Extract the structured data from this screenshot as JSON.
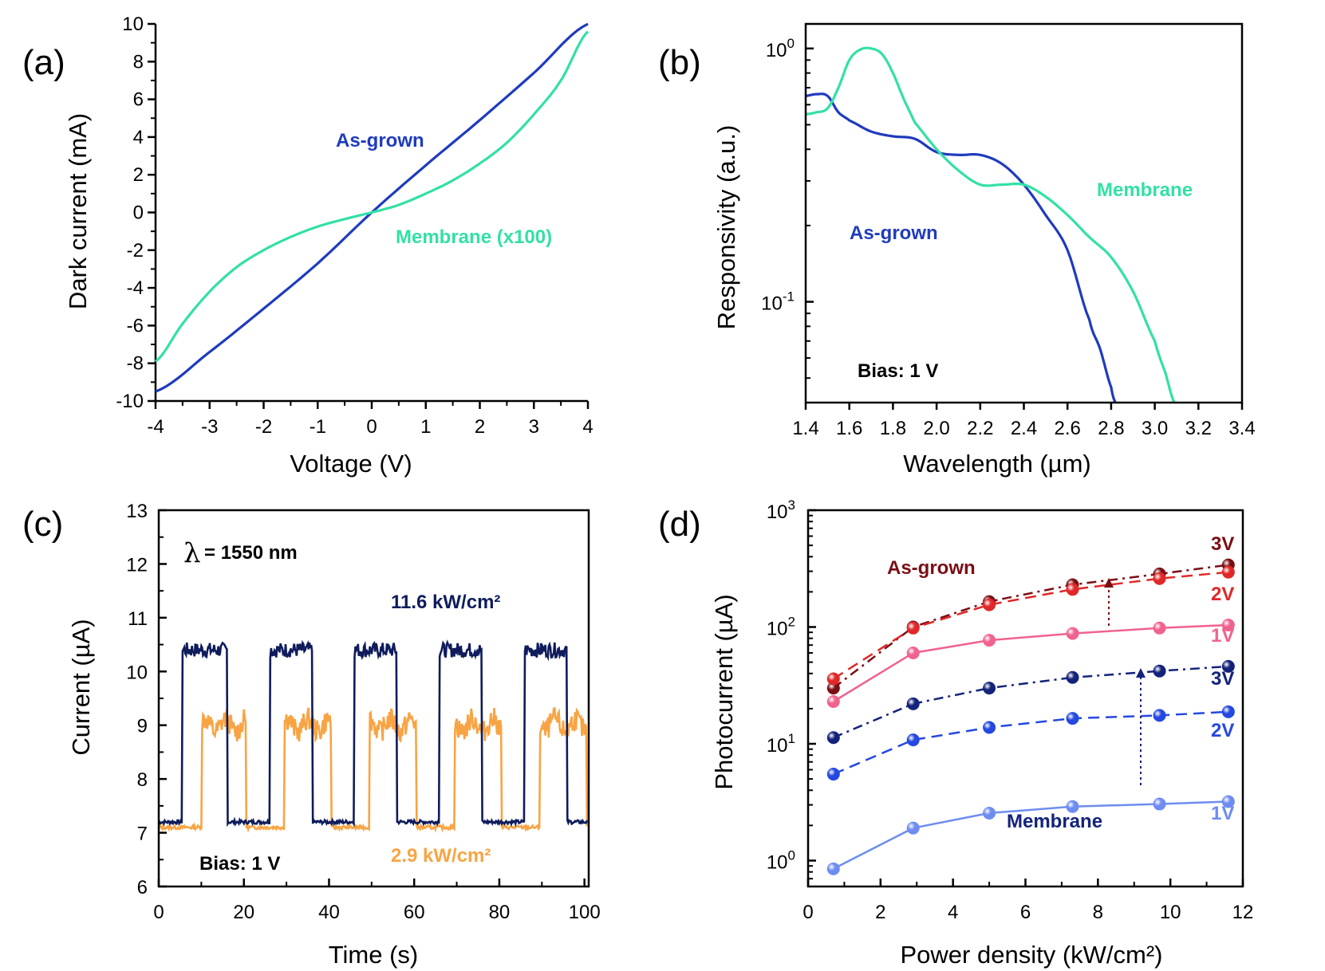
{
  "chart_data": [
    {
      "panel": "(a)",
      "type": "line",
      "xlabel": "Voltage (V)",
      "ylabel": "Dark current (mA)",
      "xlim": [
        -4,
        4
      ],
      "ylim": [
        -10,
        10
      ],
      "xticks": [
        "-4",
        "-3",
        "-2",
        "-1",
        "0",
        "1",
        "2",
        "3",
        "4"
      ],
      "yticks": [
        "-10",
        "-8",
        "-6",
        "-4",
        "-2",
        "0",
        "2",
        "4",
        "6",
        "8",
        "10"
      ],
      "series": [
        {
          "name": "As-grown",
          "color": "#1f3bbd",
          "x": [
            -4,
            -3,
            -2,
            -1,
            0,
            1,
            2,
            3,
            4
          ],
          "y": [
            -9.5,
            -7.4,
            -5.1,
            -2.7,
            0,
            2.5,
            4.9,
            7.4,
            10.0
          ]
        },
        {
          "name": "Membrane (x100)",
          "color": "#33e0a6",
          "x": [
            -4,
            -3.5,
            -3,
            -2.5,
            -2,
            -1.5,
            -1,
            -0.5,
            0,
            0.5,
            1,
            1.5,
            2,
            2.5,
            3,
            3.5,
            4
          ],
          "y": [
            -7.9,
            -5.9,
            -4.2,
            -2.9,
            -2.0,
            -1.3,
            -0.75,
            -0.35,
            0,
            0.4,
            1.0,
            1.7,
            2.6,
            3.7,
            5.2,
            7.0,
            9.6
          ]
        }
      ]
    },
    {
      "panel": "(b)",
      "type": "line",
      "yscale": "log",
      "xlabel": "Wavelength (µm)",
      "ylabel": "Responsivity (a.u.)",
      "xlim": [
        1.4,
        3.4
      ],
      "ylim": [
        0.04,
        1.25
      ],
      "xticks": [
        "1.4",
        "1.6",
        "1.8",
        "2.0",
        "2.2",
        "2.4",
        "2.6",
        "2.8",
        "3.0",
        "3.2",
        "3.4"
      ],
      "ytick_base": "10",
      "ytick_exponents": [
        "0",
        "-1"
      ],
      "annotation": "Bias: 1 V",
      "series": [
        {
          "name": "As-grown",
          "color": "#1f3bbd",
          "x": [
            1.4,
            1.45,
            1.5,
            1.55,
            1.6,
            1.7,
            1.8,
            1.9,
            2.0,
            2.1,
            2.2,
            2.3,
            2.4,
            2.5,
            2.6,
            2.7,
            2.75,
            2.8,
            2.82
          ],
          "y": [
            0.65,
            0.66,
            0.65,
            0.56,
            0.52,
            0.47,
            0.45,
            0.44,
            0.39,
            0.38,
            0.38,
            0.35,
            0.29,
            0.22,
            0.16,
            0.085,
            0.065,
            0.046,
            0.04
          ]
        },
        {
          "name": "Membrane",
          "color": "#33e0a6",
          "x": [
            1.4,
            1.45,
            1.5,
            1.55,
            1.6,
            1.65,
            1.7,
            1.75,
            1.8,
            1.85,
            1.9,
            2.0,
            2.1,
            2.2,
            2.3,
            2.4,
            2.5,
            2.6,
            2.7,
            2.8,
            2.9,
            3.0,
            3.05,
            3.09
          ],
          "y": [
            0.55,
            0.56,
            0.58,
            0.7,
            0.9,
            0.99,
            1.0,
            0.95,
            0.8,
            0.63,
            0.51,
            0.4,
            0.33,
            0.29,
            0.29,
            0.29,
            0.26,
            0.22,
            0.18,
            0.15,
            0.11,
            0.07,
            0.052,
            0.04
          ]
        }
      ]
    },
    {
      "panel": "(c)",
      "type": "line",
      "xlabel": "Time (s)",
      "ylabel": "Current (µA)",
      "xlim": [
        0,
        101
      ],
      "ylim": [
        6,
        13
      ],
      "xticks": [
        "0",
        "20",
        "40",
        "60",
        "80",
        "100"
      ],
      "yticks": [
        "6",
        "7",
        "8",
        "9",
        "10",
        "11",
        "12",
        "13"
      ],
      "wavelength": "1550 nm",
      "annotation": "Bias: 1 V",
      "series": [
        {
          "name": "11.6 kW/cm²",
          "color": "#0f1c5c",
          "off_level": 7.2,
          "on_level": 10.4,
          "on_intervals": [
            [
              5.5,
              16
            ],
            [
              26,
              36
            ],
            [
              46,
              56
            ],
            [
              66,
              76
            ],
            [
              86,
              96
            ]
          ]
        },
        {
          "name": "2.9 kW/cm²",
          "color": "#f8a444",
          "off_level": 7.1,
          "on_level": 9.0,
          "on_intervals": [
            [
              10,
              20.5
            ],
            [
              29.5,
              40.5
            ],
            [
              49.5,
              60.5
            ],
            [
              69.5,
              80.5
            ],
            [
              89.5,
              100.5
            ]
          ]
        }
      ]
    },
    {
      "panel": "(d)",
      "type": "line",
      "yscale": "log",
      "xlabel": "Power density (kW/cm²)",
      "ylabel": "Photocurrent (µA)",
      "xlim": [
        0,
        12
      ],
      "ylim": [
        0.6,
        1000
      ],
      "xticks": [
        "0",
        "2",
        "4",
        "6",
        "8",
        "10",
        "12"
      ],
      "ytick_base": "10",
      "ytick_exponents": [
        "3",
        "2",
        "1",
        "0"
      ],
      "x": [
        0.7,
        2.9,
        5.0,
        7.3,
        9.7,
        11.6
      ],
      "series": [
        {
          "name": "As-grown 3V",
          "group": "As-grown",
          "color": "#7a0e14",
          "dash": "dashdot",
          "values": [
            30,
            100,
            165,
            230,
            285,
            340
          ]
        },
        {
          "name": "As-grown 2V",
          "group": "As-grown",
          "color": "#e02828",
          "dash": "dashed",
          "values": [
            36,
            98,
            155,
            210,
            260,
            295
          ]
        },
        {
          "name": "As-grown 1V",
          "group": "As-grown",
          "color": "#f0628e",
          "dash": "solid",
          "values": [
            23,
            60,
            77,
            88,
            98,
            104
          ]
        },
        {
          "name": "Membrane 3V",
          "group": "Membrane",
          "color": "#14237a",
          "dash": "dashdot",
          "values": [
            11.3,
            22,
            30,
            37,
            42,
            46
          ]
        },
        {
          "name": "Membrane 2V",
          "group": "Membrane",
          "color": "#2448e0",
          "dash": "dashed",
          "values": [
            5.5,
            10.8,
            13.8,
            16.5,
            17.5,
            18.8
          ]
        },
        {
          "name": "Membrane 1V",
          "group": "Membrane",
          "color": "#6e8cf0",
          "dash": "solid",
          "values": [
            0.85,
            1.9,
            2.55,
            2.9,
            3.05,
            3.2
          ]
        }
      ],
      "annotations": {
        "as_grown": "As-grown",
        "membrane": "Membrane",
        "v3": "3V",
        "v2": "2V",
        "v1": "1V"
      }
    }
  ]
}
